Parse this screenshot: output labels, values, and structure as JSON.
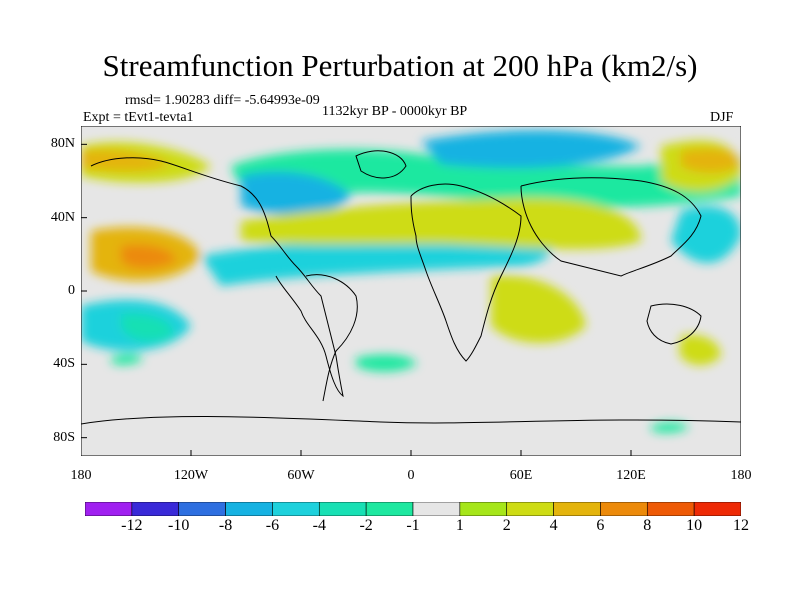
{
  "plot": {
    "title": "Streamfunction Perturbation at 200 hPa (km2/s)",
    "stats": "rmsd= 1.90283 diff= -5.64993e-09",
    "experiment": "Expt = tEvt1-tevta1",
    "period": "1132kyr BP - 0000kyr BP",
    "season": "DJF"
  },
  "map_data": {
    "projection": "cylindrical equidistant",
    "lon_range": [
      180,
      540
    ],
    "lat_range": [
      -90,
      90
    ],
    "y_ticks": [
      {
        "lat": 80,
        "label": "80N"
      },
      {
        "lat": 40,
        "label": "40N"
      },
      {
        "lat": 0,
        "label": "0"
      },
      {
        "lat": -40,
        "label": "40S"
      },
      {
        "lat": -80,
        "label": "80S"
      }
    ],
    "x_ticks": [
      {
        "lon": 180,
        "label": "180"
      },
      {
        "lon": 240,
        "label": "120W"
      },
      {
        "lon": 300,
        "label": "60W"
      },
      {
        "lon": 360,
        "label": "0"
      },
      {
        "lon": 420,
        "label": "60E"
      },
      {
        "lon": 480,
        "label": "120E"
      },
      {
        "lon": 540,
        "label": "180"
      }
    ]
  },
  "colorbar": {
    "labels": [
      "-12",
      "-10",
      "-8",
      "-6",
      "-4",
      "-2",
      "-1",
      "1",
      "2",
      "4",
      "6",
      "8",
      "10",
      "12"
    ],
    "colors": [
      "#a020f0",
      "#3a2ad8",
      "#2e6fe0",
      "#16b2e2",
      "#1ed1dc",
      "#18e0b4",
      "#1ee8a0",
      "#e6e6e6",
      "#a6e61a",
      "#cedc14",
      "#e4b40c",
      "#ec8a0a",
      "#ee5a06",
      "#ee2a06"
    ]
  }
}
